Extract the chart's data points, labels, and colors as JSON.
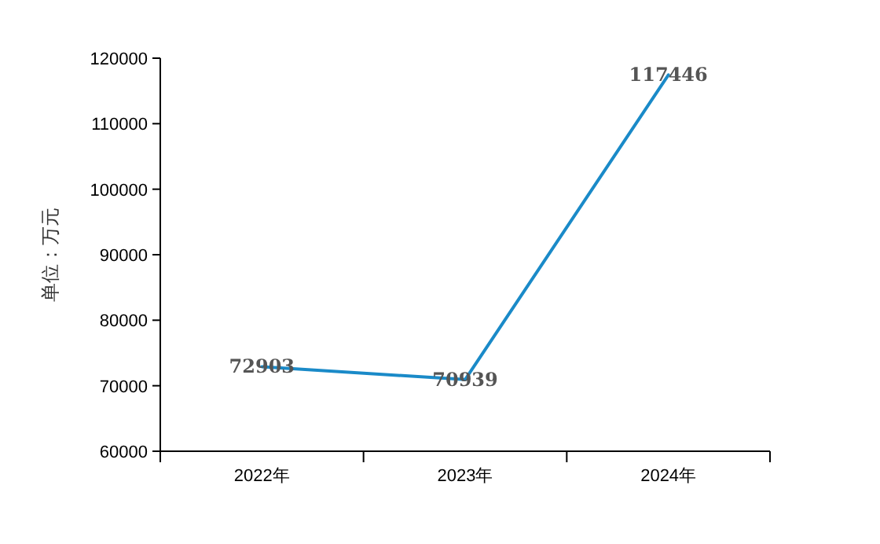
{
  "chart_data": {
    "type": "line",
    "ylabel": "单位：万元",
    "categories": [
      "2022年",
      "2023年",
      "2024年"
    ],
    "series": [
      {
        "color": "#1a8ac8",
        "values": [
          72903,
          70939,
          117446
        ]
      }
    ],
    "ylim": [
      60000,
      120000
    ],
    "yticks": [
      60000,
      70000,
      80000,
      90000,
      100000,
      110000,
      120000
    ],
    "data_labels": true
  }
}
